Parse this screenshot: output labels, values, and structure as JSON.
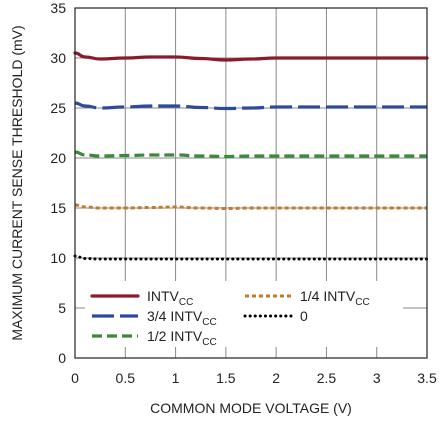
{
  "chart_data": {
    "type": "line",
    "title": "",
    "xlabel": "COMMON MODE VOLTAGE (V)",
    "ylabel": "MAXIMUM CURRENT SENSE THRESHOLD (mV)",
    "xlim": [
      0,
      3.5
    ],
    "ylim": [
      0,
      35
    ],
    "x_ticks": [
      "0",
      "0.5",
      "1",
      "1.5",
      "2",
      "2.5",
      "3",
      "3.5"
    ],
    "y_ticks": [
      "0",
      "5",
      "10",
      "15",
      "20",
      "25",
      "30",
      "35"
    ],
    "grid": true,
    "legend_position": "bottom-left",
    "series": [
      {
        "name": "INTVCC",
        "name_main": "INTV",
        "name_sub": "CC",
        "color": "#8a1a2e",
        "style": "solid",
        "x": [
          0,
          0.1,
          0.25,
          0.5,
          0.75,
          1,
          1.25,
          1.5,
          1.75,
          2,
          2.5,
          3,
          3.5
        ],
        "y": [
          30.5,
          30.1,
          29.9,
          30.0,
          30.1,
          30.1,
          29.95,
          29.8,
          29.9,
          30.0,
          30.0,
          30.0,
          30.0
        ]
      },
      {
        "name": "3/4 INTVCC",
        "name_main": "3/4 INTV",
        "name_sub": "CC",
        "color": "#2e4a9a",
        "style": "longdash",
        "x": [
          0,
          0.1,
          0.25,
          0.5,
          0.75,
          1,
          1.25,
          1.5,
          1.75,
          2,
          2.5,
          3,
          3.5
        ],
        "y": [
          25.5,
          25.2,
          25.0,
          25.1,
          25.2,
          25.2,
          25.05,
          24.95,
          25.0,
          25.1,
          25.1,
          25.1,
          25.1
        ]
      },
      {
        "name": "1/2 INTVCC",
        "name_main": "1/2 INTV",
        "name_sub": "CC",
        "color": "#3a8a3a",
        "style": "dash",
        "x": [
          0,
          0.1,
          0.25,
          0.5,
          0.75,
          1,
          1.25,
          1.5,
          1.75,
          2,
          2.5,
          3,
          3.5
        ],
        "y": [
          20.6,
          20.3,
          20.2,
          20.25,
          20.3,
          20.3,
          20.2,
          20.15,
          20.2,
          20.2,
          20.2,
          20.2,
          20.2
        ]
      },
      {
        "name": "1/4 INTVCC",
        "name_main": "1/4 INTV",
        "name_sub": "CC",
        "color": "#c8782a",
        "style": "shortdash",
        "x": [
          0,
          0.1,
          0.25,
          0.5,
          0.75,
          1,
          1.25,
          1.5,
          1.75,
          2,
          2.5,
          3,
          3.5
        ],
        "y": [
          15.3,
          15.1,
          15.0,
          15.0,
          15.05,
          15.1,
          15.0,
          14.95,
          15.0,
          15.0,
          15.0,
          15.0,
          15.0
        ]
      },
      {
        "name": "0",
        "name_main": "0",
        "name_sub": "",
        "color": "#000000",
        "style": "dotted",
        "x": [
          0,
          0.1,
          0.25,
          0.5,
          1,
          1.5,
          2,
          2.5,
          3,
          3.5
        ],
        "y": [
          10.2,
          9.95,
          9.9,
          9.9,
          9.9,
          9.9,
          9.9,
          9.9,
          9.9,
          9.9
        ]
      }
    ]
  }
}
